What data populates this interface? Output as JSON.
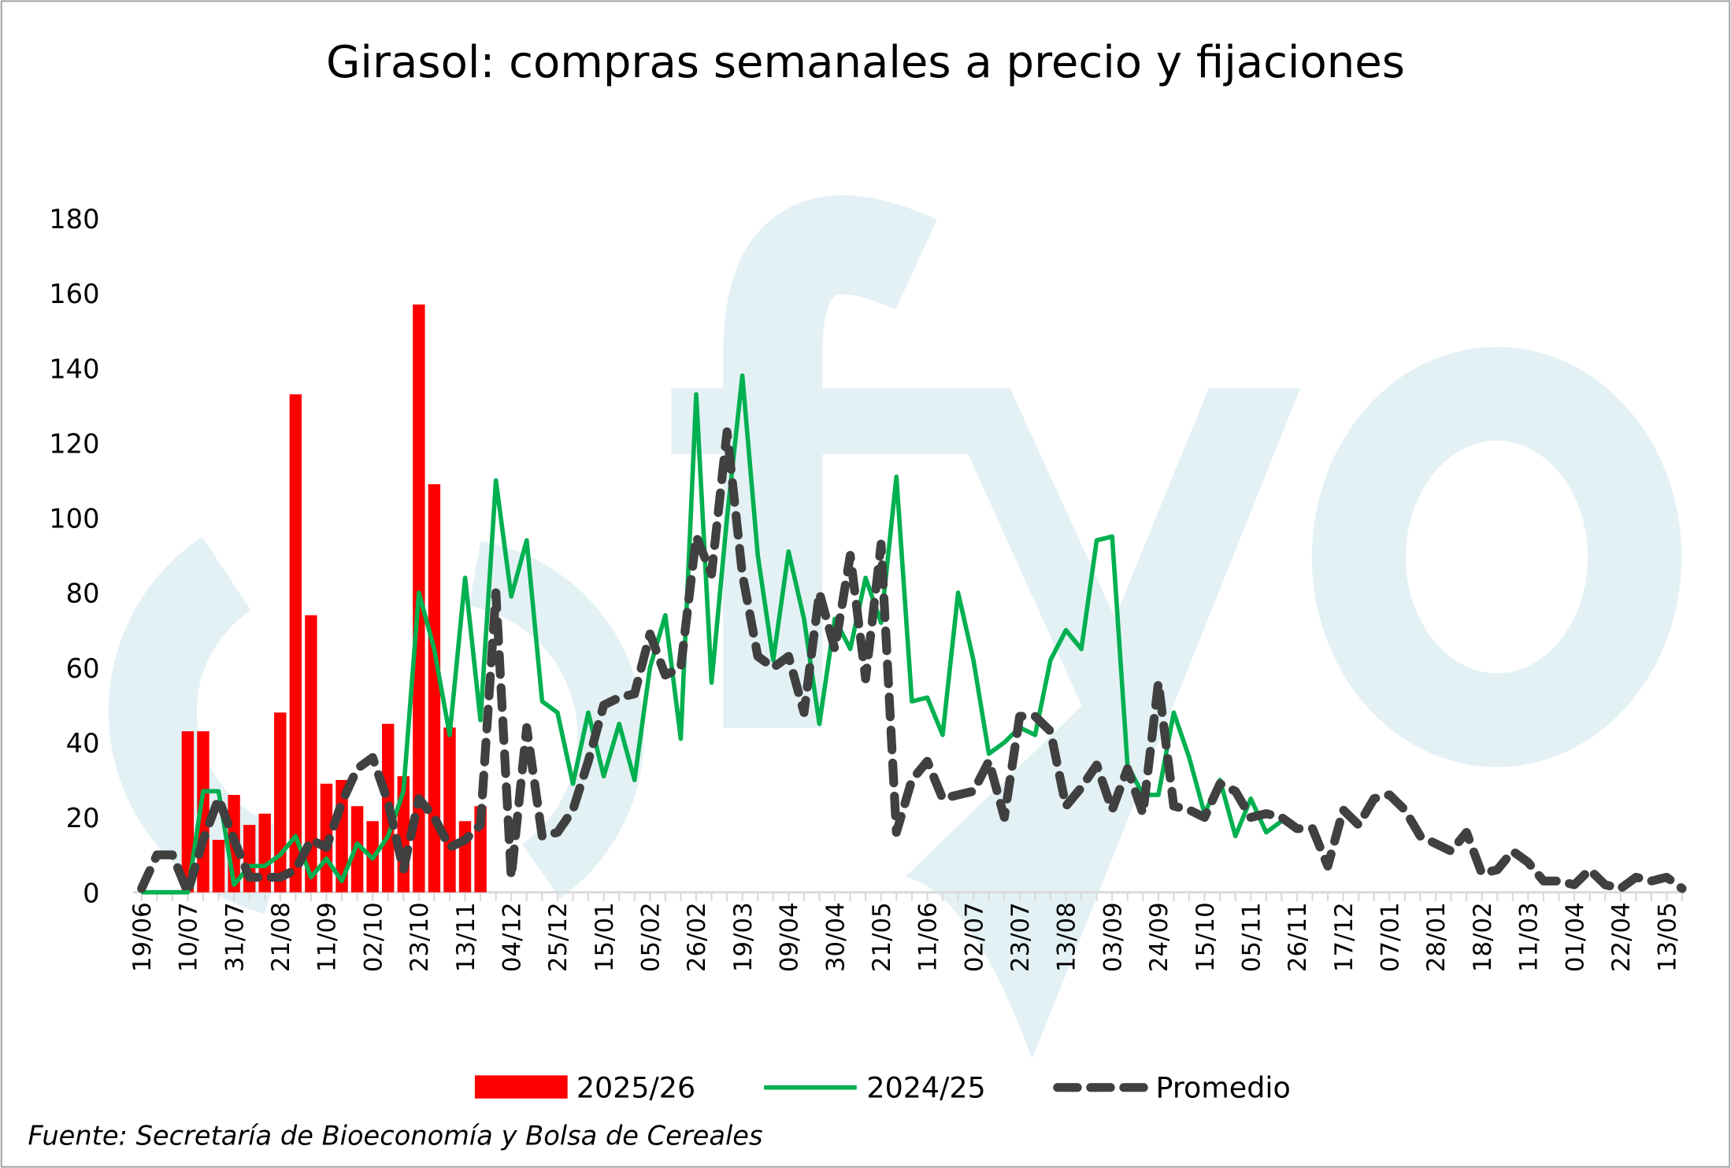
{
  "chart_data": {
    "type": "bar+line",
    "title": "Girasol: compras semanales a precio y fijaciones",
    "source": "Fuente: Secretaría de Bioeconomía y Bolsa de Cereales",
    "watermark": "cfyo",
    "ylim": [
      0,
      180
    ],
    "yticks": [
      "0",
      "20",
      "40",
      "60",
      "80",
      "100",
      "120",
      "140",
      "160",
      "180"
    ],
    "xtick_labels": [
      "19/06",
      "10/07",
      "31/07",
      "21/08",
      "11/09",
      "02/10",
      "23/10",
      "13/11",
      "04/12",
      "25/12",
      "15/01",
      "05/02",
      "26/02",
      "19/03",
      "09/04",
      "30/04",
      "21/05",
      "11/06",
      "02/07",
      "23/07",
      "13/08",
      "03/09",
      "24/09",
      "15/10",
      "05/11",
      "26/11",
      "17/12",
      "07/01",
      "28/01",
      "18/02",
      "11/03",
      "01/04",
      "22/04",
      "13/05"
    ],
    "xtick_every_weeks": 3,
    "legend_position": "bottom",
    "series": [
      {
        "name": "2025/26",
        "type": "bar",
        "color": "#ff0000",
        "start_week": 3,
        "values": [
          43,
          43,
          14,
          26,
          18,
          21,
          48,
          133,
          74,
          29,
          30,
          23,
          19,
          45,
          31,
          157,
          109,
          44,
          19,
          23
        ]
      },
      {
        "name": "2024/25",
        "type": "line",
        "color": "#00b050",
        "start_week": 0,
        "values": [
          0,
          0,
          0,
          0,
          27,
          27,
          2,
          7,
          7,
          10,
          15,
          4,
          9,
          3,
          13,
          9,
          15,
          27,
          80,
          65,
          42,
          84,
          46,
          110,
          79,
          94,
          51,
          48,
          29,
          48,
          31,
          45,
          30,
          60,
          74,
          41,
          133,
          56,
          100,
          138,
          90,
          62,
          91,
          73,
          45,
          73,
          65,
          84,
          72,
          111,
          51,
          52,
          42,
          80,
          62,
          37,
          40,
          44,
          42,
          62,
          70,
          65,
          94,
          95,
          34,
          26,
          26,
          48,
          36,
          21,
          30,
          15,
          25,
          16,
          19
        ]
      },
      {
        "name": "Promedio",
        "type": "line-dashed",
        "color": "#404040",
        "start_week": 0,
        "values": [
          1,
          10,
          10,
          0,
          14,
          25,
          14,
          4,
          4,
          4,
          6,
          14,
          12,
          24,
          33,
          36,
          24,
          6,
          25,
          20,
          12,
          14,
          18,
          80,
          4,
          44,
          15,
          16,
          22,
          35,
          50,
          52,
          53,
          69,
          58,
          60,
          95,
          85,
          123,
          85,
          63,
          60,
          63,
          48,
          80,
          65,
          90,
          57,
          93,
          16,
          30,
          35,
          25,
          26,
          27,
          35,
          20,
          47,
          47,
          43,
          23,
          28,
          34,
          22,
          33,
          21,
          56,
          23,
          22,
          20,
          29,
          27,
          20,
          21,
          20,
          17,
          17,
          7,
          22,
          18,
          25,
          26,
          22,
          15,
          13,
          11,
          16,
          5,
          6,
          11,
          8,
          3,
          3,
          2,
          6,
          2,
          1,
          4,
          3,
          4,
          1
        ]
      }
    ]
  }
}
